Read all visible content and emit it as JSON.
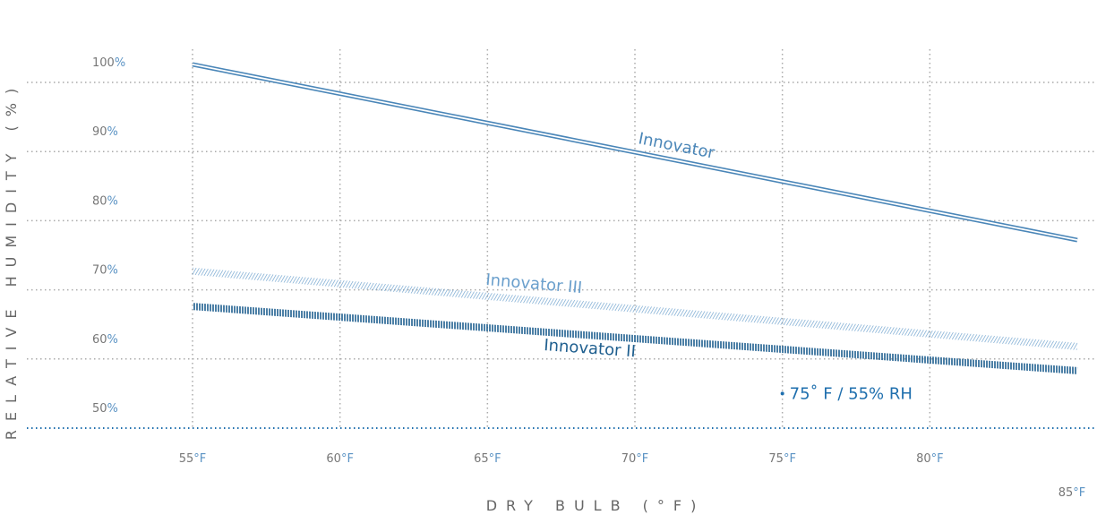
{
  "chart_data": {
    "type": "line",
    "xlabel": "DRY BULB (°F)",
    "ylabel": "RELATIVE HUMIDITY (%)",
    "x": [
      55,
      85
    ],
    "series": [
      {
        "name": "Innovator",
        "color": "#4a86b8",
        "values": [
          102.6,
          77.2
        ]
      },
      {
        "name": "Innovator III",
        "color": "#6a9fcc",
        "values": [
          72.7,
          61.8
        ]
      },
      {
        "name": "Innovator II",
        "color": "#1f5f8f",
        "values": [
          67.6,
          58.3
        ]
      }
    ],
    "annotation": {
      "text": "75˚ F / 55% RH",
      "x": 75,
      "y": 55,
      "color": "#1f6fae"
    },
    "xlim": [
      55,
      85
    ],
    "xticks": [
      55,
      60,
      65,
      70,
      75,
      80,
      85
    ],
    "xtick_unit": "°F",
    "ylim": [
      50,
      100
    ],
    "yticks": [
      50,
      60,
      70,
      80,
      90,
      100
    ],
    "ytick_unit": "%",
    "grid": true
  }
}
